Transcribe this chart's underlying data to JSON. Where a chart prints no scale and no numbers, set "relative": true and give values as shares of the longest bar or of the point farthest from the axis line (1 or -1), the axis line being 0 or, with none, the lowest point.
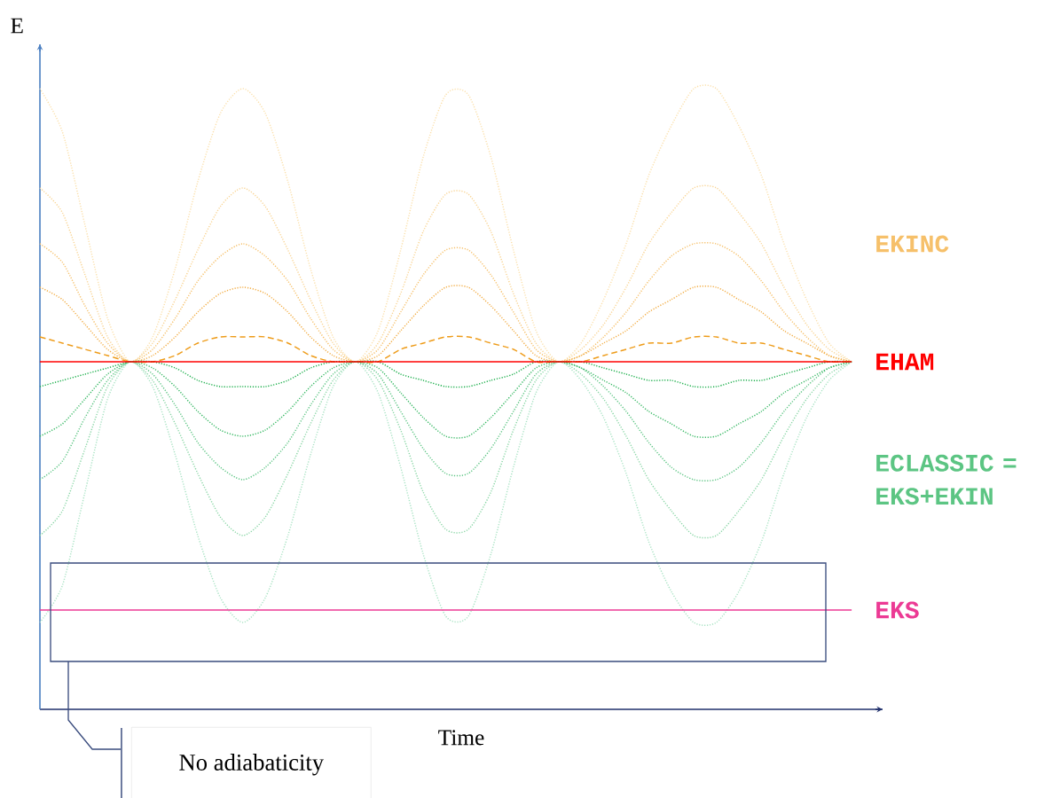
{
  "chart_data": {
    "type": "line",
    "relative": true,
    "xlabel": "Time",
    "ylabel": "E",
    "categories": [
      null,
      null,
      null,
      null,
      null,
      null,
      null,
      null,
      null,
      null,
      null,
      null,
      null,
      null,
      null,
      null,
      null,
      null,
      null,
      null,
      null,
      null,
      null,
      null,
      null,
      null,
      null,
      null,
      null,
      null,
      null,
      null,
      null,
      null,
      null,
      null,
      null
    ],
    "series": [
      {
        "color": "#fbe0ac",
        "line_style": "dotted",
        "values": [
          1.0,
          0.93,
          0.78,
          0.63,
          0.56,
          0.6,
          0.71,
          0.85,
          0.96,
          1.0,
          0.96,
          0.85,
          0.71,
          0.6,
          0.56,
          0.61,
          0.74,
          0.89,
          0.99,
          0.99,
          0.89,
          0.74,
          0.61,
          0.56,
          0.59,
          0.66,
          0.75,
          0.86,
          0.94,
          1.0,
          1.0,
          0.94,
          0.86,
          0.75,
          0.66,
          0.59,
          0.56
        ]
      },
      {
        "color": "#f9d493",
        "line_style": "dotted",
        "values": [
          0.84,
          0.8,
          0.7,
          0.6,
          0.56,
          0.59,
          0.66,
          0.74,
          0.81,
          0.84,
          0.81,
          0.74,
          0.66,
          0.59,
          0.56,
          0.59,
          0.67,
          0.77,
          0.83,
          0.83,
          0.77,
          0.67,
          0.59,
          0.56,
          0.58,
          0.62,
          0.68,
          0.75,
          0.8,
          0.84,
          0.84,
          0.8,
          0.75,
          0.68,
          0.62,
          0.58,
          0.56
        ]
      },
      {
        "name": "EKINC",
        "color": "#f6c06a",
        "line_style": "dotted",
        "values": [
          0.75,
          0.72,
          0.65,
          0.59,
          0.56,
          0.58,
          0.63,
          0.69,
          0.73,
          0.75,
          0.73,
          0.69,
          0.63,
          0.58,
          0.56,
          0.58,
          0.64,
          0.7,
          0.74,
          0.74,
          0.7,
          0.64,
          0.58,
          0.56,
          0.57,
          0.6,
          0.64,
          0.69,
          0.73,
          0.75,
          0.75,
          0.73,
          0.69,
          0.64,
          0.6,
          0.57,
          0.56
        ]
      },
      {
        "color": "#f2ad45",
        "line_style": "dotted",
        "values": [
          0.68,
          0.66,
          0.62,
          0.58,
          0.56,
          0.57,
          0.6,
          0.64,
          0.67,
          0.68,
          0.67,
          0.64,
          0.6,
          0.57,
          0.56,
          0.57,
          0.61,
          0.65,
          0.68,
          0.68,
          0.65,
          0.61,
          0.57,
          0.56,
          0.57,
          0.59,
          0.61,
          0.64,
          0.66,
          0.68,
          0.68,
          0.66,
          0.64,
          0.61,
          0.59,
          0.57,
          0.56
        ]
      },
      {
        "color": "#ee9c1a",
        "line_style": "dashed",
        "values": [
          0.6,
          0.59,
          0.58,
          0.57,
          0.56,
          0.56,
          0.57,
          0.59,
          0.6,
          0.6,
          0.6,
          0.59,
          0.57,
          0.56,
          0.56,
          0.56,
          0.58,
          0.59,
          0.6,
          0.6,
          0.59,
          0.58,
          0.56,
          0.56,
          0.56,
          0.57,
          0.58,
          0.59,
          0.59,
          0.6,
          0.6,
          0.59,
          0.59,
          0.58,
          0.57,
          0.56,
          0.56
        ]
      },
      {
        "color": "#a9e3c4",
        "line_style": "dotted",
        "values": [
          0.14,
          0.2,
          0.35,
          0.5,
          0.56,
          0.52,
          0.41,
          0.28,
          0.18,
          0.14,
          0.18,
          0.28,
          0.41,
          0.52,
          0.56,
          0.51,
          0.39,
          0.25,
          0.15,
          0.15,
          0.25,
          0.39,
          0.51,
          0.56,
          0.53,
          0.47,
          0.38,
          0.27,
          0.19,
          0.14,
          0.14,
          0.19,
          0.27,
          0.38,
          0.47,
          0.53,
          0.56
        ]
      },
      {
        "color": "#8ad6a6",
        "line_style": "dotted",
        "values": [
          0.28,
          0.32,
          0.42,
          0.52,
          0.56,
          0.53,
          0.46,
          0.38,
          0.31,
          0.28,
          0.31,
          0.38,
          0.46,
          0.53,
          0.56,
          0.53,
          0.45,
          0.35,
          0.29,
          0.29,
          0.35,
          0.45,
          0.53,
          0.56,
          0.54,
          0.5,
          0.44,
          0.37,
          0.32,
          0.28,
          0.28,
          0.32,
          0.37,
          0.44,
          0.5,
          0.54,
          0.56
        ]
      },
      {
        "name": "ECLASSIC = EKS+EKIN",
        "color": "#5cc583",
        "line_style": "dotted",
        "values": [
          0.37,
          0.4,
          0.47,
          0.53,
          0.56,
          0.54,
          0.49,
          0.43,
          0.39,
          0.37,
          0.39,
          0.43,
          0.49,
          0.54,
          0.56,
          0.54,
          0.48,
          0.42,
          0.38,
          0.38,
          0.42,
          0.48,
          0.54,
          0.56,
          0.55,
          0.52,
          0.48,
          0.43,
          0.39,
          0.37,
          0.37,
          0.39,
          0.43,
          0.48,
          0.52,
          0.55,
          0.56
        ]
      },
      {
        "color": "#36b863",
        "line_style": "dotted",
        "values": [
          0.44,
          0.46,
          0.5,
          0.54,
          0.56,
          0.55,
          0.52,
          0.48,
          0.45,
          0.44,
          0.45,
          0.48,
          0.52,
          0.55,
          0.56,
          0.55,
          0.51,
          0.47,
          0.44,
          0.44,
          0.47,
          0.51,
          0.55,
          0.56,
          0.55,
          0.53,
          0.51,
          0.48,
          0.46,
          0.44,
          0.44,
          0.46,
          0.48,
          0.51,
          0.53,
          0.55,
          0.56
        ]
      },
      {
        "color": "#1aae4a",
        "line_style": "dotted",
        "values": [
          0.52,
          0.53,
          0.54,
          0.55,
          0.56,
          0.56,
          0.55,
          0.53,
          0.52,
          0.52,
          0.52,
          0.53,
          0.55,
          0.56,
          0.56,
          0.56,
          0.54,
          0.53,
          0.52,
          0.52,
          0.53,
          0.54,
          0.56,
          0.56,
          0.56,
          0.55,
          0.54,
          0.53,
          0.53,
          0.52,
          0.52,
          0.53,
          0.53,
          0.54,
          0.55,
          0.56,
          0.56
        ]
      },
      {
        "name": "EHAM",
        "color": "#ff0000",
        "line_style": "solid",
        "values": [
          0.56,
          0.56,
          0.56,
          0.56,
          0.56,
          0.56,
          0.56,
          0.56,
          0.56,
          0.56,
          0.56,
          0.56,
          0.56,
          0.56,
          0.56,
          0.56,
          0.56,
          0.56,
          0.56,
          0.56,
          0.56,
          0.56,
          0.56,
          0.56,
          0.56,
          0.56,
          0.56,
          0.56,
          0.56,
          0.56,
          0.56,
          0.56,
          0.56,
          0.56,
          0.56,
          0.56,
          0.56
        ]
      },
      {
        "name": "EKS",
        "color": "#ec3a94",
        "line_style": "solid",
        "values": [
          0.16,
          0.16,
          0.16,
          0.16,
          0.16,
          0.16,
          0.16,
          0.16,
          0.16,
          0.16,
          0.16,
          0.16,
          0.16,
          0.16,
          0.16,
          0.16,
          0.16,
          0.16,
          0.16,
          0.16,
          0.16,
          0.16,
          0.16,
          0.16,
          0.16,
          0.16,
          0.16,
          0.16,
          0.16,
          0.16,
          0.16,
          0.16,
          0.16,
          0.16,
          0.16,
          0.16,
          0.16
        ]
      }
    ],
    "annotations": [
      "No adiabaticity"
    ]
  }
}
